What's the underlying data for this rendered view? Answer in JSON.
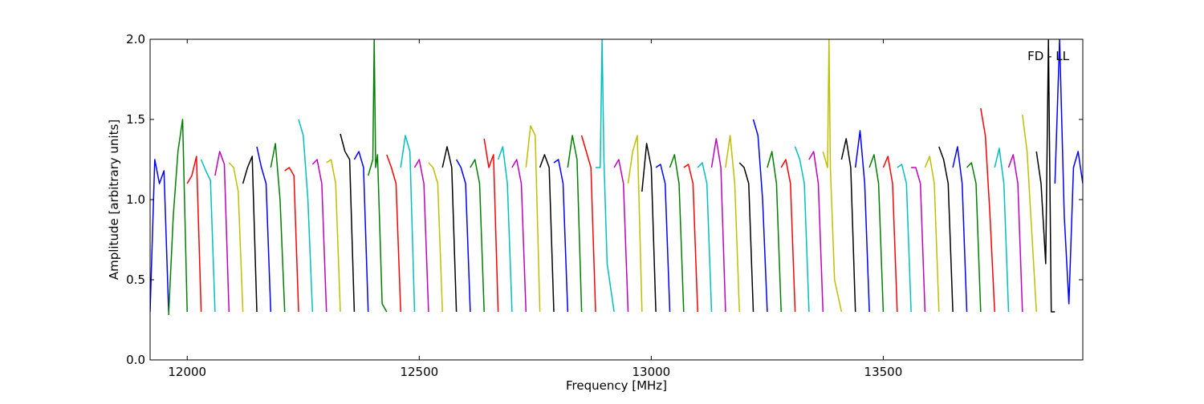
{
  "chart_data": {
    "type": "line",
    "title": "",
    "annotation": "FD - LL",
    "xlabel": "Frequency [MHz]",
    "ylabel": "Amplitude [arbitrary units]",
    "xlim": [
      11920,
      13930
    ],
    "ylim": [
      0.0,
      2.0
    ],
    "xticks": [
      12000,
      12500,
      13000,
      13500
    ],
    "xtick_labels": [
      "12000",
      "12500",
      "13000",
      "13500"
    ],
    "yticks": [
      0.0,
      0.5,
      1.0,
      1.5,
      2.0
    ],
    "ytick_labels": [
      "0.0",
      "0.5",
      "1.0",
      "1.5",
      "2.0"
    ],
    "grid": false,
    "color_cycle": [
      "#0000ff",
      "#008000",
      "#ff0000",
      "#00bfbf",
      "#bf00bf",
      "#bfbf00",
      "#000000"
    ],
    "series": [
      {
        "color": "#0000ff",
        "x": [
          11920,
          11930,
          11940,
          11950,
          11960
        ],
        "y": [
          0.3,
          1.25,
          1.1,
          1.18,
          0.3
        ]
      },
      {
        "color": "#008000",
        "x": [
          11960,
          11970,
          11980,
          11990,
          12000
        ],
        "y": [
          0.28,
          0.9,
          1.3,
          1.5,
          0.3
        ]
      },
      {
        "color": "#ff0000",
        "x": [
          12000,
          12010,
          12020,
          12030
        ],
        "y": [
          1.1,
          1.15,
          1.27,
          0.3
        ]
      },
      {
        "color": "#00bfbf",
        "x": [
          12030,
          12040,
          12050,
          12060
        ],
        "y": [
          1.25,
          1.18,
          1.12,
          0.3
        ]
      },
      {
        "color": "#bf00bf",
        "x": [
          12060,
          12070,
          12080,
          12090
        ],
        "y": [
          1.15,
          1.3,
          1.22,
          0.3
        ]
      },
      {
        "color": "#bfbf00",
        "x": [
          12090,
          12100,
          12110,
          12120
        ],
        "y": [
          1.23,
          1.2,
          1.05,
          0.3
        ]
      },
      {
        "color": "#000000",
        "x": [
          12120,
          12130,
          12140,
          12150
        ],
        "y": [
          1.1,
          1.2,
          1.27,
          0.3
        ]
      },
      {
        "color": "#0000ff",
        "x": [
          12150,
          12160,
          12170,
          12180
        ],
        "y": [
          1.33,
          1.2,
          1.1,
          0.3
        ]
      },
      {
        "color": "#008000",
        "x": [
          12180,
          12190,
          12200,
          12210
        ],
        "y": [
          1.2,
          1.35,
          1.0,
          0.3
        ]
      },
      {
        "color": "#ff0000",
        "x": [
          12210,
          12220,
          12230,
          12240
        ],
        "y": [
          1.18,
          1.2,
          1.15,
          0.3
        ]
      },
      {
        "color": "#00bfbf",
        "x": [
          12240,
          12250,
          12260,
          12270
        ],
        "y": [
          1.5,
          1.4,
          1.0,
          0.3
        ]
      },
      {
        "color": "#bf00bf",
        "x": [
          12270,
          12280,
          12290,
          12300
        ],
        "y": [
          1.22,
          1.25,
          1.1,
          0.3
        ]
      },
      {
        "color": "#bfbf00",
        "x": [
          12300,
          12310,
          12320,
          12330
        ],
        "y": [
          1.23,
          1.25,
          1.1,
          0.3
        ]
      },
      {
        "color": "#000000",
        "x": [
          12330,
          12340,
          12350,
          12360
        ],
        "y": [
          1.41,
          1.3,
          1.25,
          0.3
        ]
      },
      {
        "color": "#0000ff",
        "x": [
          12360,
          12370,
          12380,
          12390
        ],
        "y": [
          1.25,
          1.3,
          1.2,
          0.3
        ]
      },
      {
        "color": "#008000",
        "x": [
          12390,
          12400,
          12403,
          12406,
          12410,
          12420,
          12430
        ],
        "y": [
          1.15,
          1.25,
          2.0,
          1.2,
          1.28,
          0.35,
          0.3
        ]
      },
      {
        "color": "#ff0000",
        "x": [
          12430,
          12440,
          12450,
          12460
        ],
        "y": [
          1.28,
          1.2,
          1.1,
          0.3
        ]
      },
      {
        "color": "#00bfbf",
        "x": [
          12460,
          12470,
          12480,
          12490
        ],
        "y": [
          1.2,
          1.4,
          1.3,
          0.3
        ]
      },
      {
        "color": "#bf00bf",
        "x": [
          12490,
          12500,
          12510,
          12520
        ],
        "y": [
          1.2,
          1.25,
          1.1,
          0.3
        ]
      },
      {
        "color": "#bfbf00",
        "x": [
          12520,
          12530,
          12540,
          12550
        ],
        "y": [
          1.23,
          1.2,
          1.1,
          0.3
        ]
      },
      {
        "color": "#000000",
        "x": [
          12550,
          12560,
          12570,
          12580
        ],
        "y": [
          1.2,
          1.33,
          1.2,
          0.3
        ]
      },
      {
        "color": "#0000ff",
        "x": [
          12580,
          12590,
          12600,
          12610
        ],
        "y": [
          1.25,
          1.2,
          1.1,
          0.3
        ]
      },
      {
        "color": "#008000",
        "x": [
          12610,
          12620,
          12630,
          12640
        ],
        "y": [
          1.2,
          1.25,
          1.1,
          0.3
        ]
      },
      {
        "color": "#ff0000",
        "x": [
          12640,
          12650,
          12660,
          12670
        ],
        "y": [
          1.38,
          1.2,
          1.28,
          0.3
        ]
      },
      {
        "color": "#00bfbf",
        "x": [
          12670,
          12680,
          12690,
          12700
        ],
        "y": [
          1.25,
          1.33,
          1.1,
          0.3
        ]
      },
      {
        "color": "#bf00bf",
        "x": [
          12700,
          12710,
          12720,
          12730
        ],
        "y": [
          1.2,
          1.25,
          1.1,
          0.3
        ]
      },
      {
        "color": "#bfbf00",
        "x": [
          12730,
          12740,
          12750,
          12760
        ],
        "y": [
          1.2,
          1.46,
          1.4,
          0.3
        ]
      },
      {
        "color": "#000000",
        "x": [
          12760,
          12770,
          12780,
          12790
        ],
        "y": [
          1.2,
          1.28,
          1.2,
          0.3
        ]
      },
      {
        "color": "#0000ff",
        "x": [
          12790,
          12800,
          12810,
          12820
        ],
        "y": [
          1.23,
          1.25,
          1.1,
          0.3
        ]
      },
      {
        "color": "#008000",
        "x": [
          12820,
          12830,
          12840,
          12850
        ],
        "y": [
          1.2,
          1.4,
          1.25,
          0.3
        ]
      },
      {
        "color": "#ff0000",
        "x": [
          12850,
          12860,
          12870,
          12880
        ],
        "y": [
          1.4,
          1.3,
          1.2,
          0.3
        ]
      },
      {
        "color": "#00bfbf",
        "x": [
          12880,
          12890,
          12894,
          12898,
          12905,
          12920
        ],
        "y": [
          1.2,
          1.2,
          2.0,
          1.25,
          0.6,
          0.3
        ]
      },
      {
        "color": "#bf00bf",
        "x": [
          12920,
          12930,
          12940,
          12950
        ],
        "y": [
          1.2,
          1.25,
          1.1,
          0.3
        ]
      },
      {
        "color": "#bfbf00",
        "x": [
          12950,
          12960,
          12970,
          12980
        ],
        "y": [
          1.1,
          1.3,
          1.4,
          0.3
        ]
      },
      {
        "color": "#000000",
        "x": [
          12980,
          12990,
          13000,
          13010
        ],
        "y": [
          1.05,
          1.35,
          1.2,
          0.3
        ]
      },
      {
        "color": "#0000ff",
        "x": [
          13010,
          13020,
          13030,
          13040
        ],
        "y": [
          1.2,
          1.22,
          1.1,
          0.3
        ]
      },
      {
        "color": "#008000",
        "x": [
          13040,
          13050,
          13060,
          13070
        ],
        "y": [
          1.2,
          1.28,
          1.1,
          0.3
        ]
      },
      {
        "color": "#ff0000",
        "x": [
          13070,
          13080,
          13090,
          13100
        ],
        "y": [
          1.2,
          1.22,
          1.1,
          0.3
        ]
      },
      {
        "color": "#00bfbf",
        "x": [
          13100,
          13110,
          13120,
          13130
        ],
        "y": [
          1.2,
          1.23,
          1.1,
          0.3
        ]
      },
      {
        "color": "#bf00bf",
        "x": [
          13130,
          13140,
          13150,
          13160
        ],
        "y": [
          1.2,
          1.38,
          1.2,
          0.3
        ]
      },
      {
        "color": "#bfbf00",
        "x": [
          13160,
          13170,
          13180,
          13190
        ],
        "y": [
          1.2,
          1.4,
          1.1,
          0.3
        ]
      },
      {
        "color": "#000000",
        "x": [
          13190,
          13200,
          13210,
          13220
        ],
        "y": [
          1.23,
          1.2,
          1.1,
          0.3
        ]
      },
      {
        "color": "#0000ff",
        "x": [
          13220,
          13230,
          13240,
          13250
        ],
        "y": [
          1.5,
          1.4,
          1.0,
          0.3
        ]
      },
      {
        "color": "#008000",
        "x": [
          13250,
          13260,
          13270,
          13280
        ],
        "y": [
          1.2,
          1.3,
          1.1,
          0.3
        ]
      },
      {
        "color": "#ff0000",
        "x": [
          13280,
          13290,
          13300,
          13310
        ],
        "y": [
          1.2,
          1.25,
          1.1,
          0.3
        ]
      },
      {
        "color": "#00bfbf",
        "x": [
          13310,
          13320,
          13330,
          13340
        ],
        "y": [
          1.33,
          1.25,
          1.1,
          0.3
        ]
      },
      {
        "color": "#bf00bf",
        "x": [
          13340,
          13350,
          13360,
          13370
        ],
        "y": [
          1.25,
          1.3,
          1.1,
          0.3
        ]
      },
      {
        "color": "#bfbf00",
        "x": [
          13370,
          13380,
          13383,
          13386,
          13395,
          13410
        ],
        "y": [
          1.3,
          1.2,
          2.0,
          1.2,
          0.5,
          0.3
        ]
      },
      {
        "color": "#000000",
        "x": [
          13410,
          13420,
          13430,
          13440
        ],
        "y": [
          1.25,
          1.38,
          1.2,
          0.3
        ]
      },
      {
        "color": "#0000ff",
        "x": [
          13440,
          13450,
          13460,
          13470
        ],
        "y": [
          1.2,
          1.43,
          1.1,
          0.3
        ]
      },
      {
        "color": "#008000",
        "x": [
          13470,
          13480,
          13490,
          13500
        ],
        "y": [
          1.2,
          1.28,
          1.1,
          0.3
        ]
      },
      {
        "color": "#ff0000",
        "x": [
          13500,
          13510,
          13520,
          13530
        ],
        "y": [
          1.2,
          1.27,
          1.1,
          0.3
        ]
      },
      {
        "color": "#00bfbf",
        "x": [
          13530,
          13540,
          13550,
          13560
        ],
        "y": [
          1.2,
          1.22,
          1.1,
          0.3
        ]
      },
      {
        "color": "#bf00bf",
        "x": [
          13560,
          13570,
          13580,
          13590
        ],
        "y": [
          1.2,
          1.2,
          1.1,
          0.3
        ]
      },
      {
        "color": "#bfbf00",
        "x": [
          13590,
          13600,
          13610,
          13620
        ],
        "y": [
          1.2,
          1.27,
          1.1,
          0.3
        ]
      },
      {
        "color": "#000000",
        "x": [
          13620,
          13630,
          13640,
          13650
        ],
        "y": [
          1.33,
          1.25,
          1.1,
          0.3
        ]
      },
      {
        "color": "#0000ff",
        "x": [
          13650,
          13660,
          13670,
          13680
        ],
        "y": [
          1.2,
          1.33,
          1.1,
          0.3
        ]
      },
      {
        "color": "#008000",
        "x": [
          13680,
          13690,
          13700,
          13710
        ],
        "y": [
          1.2,
          1.23,
          1.1,
          0.3
        ]
      },
      {
        "color": "#ff0000",
        "x": [
          13710,
          13720,
          13730,
          13740
        ],
        "y": [
          1.57,
          1.4,
          0.9,
          0.3
        ]
      },
      {
        "color": "#00bfbf",
        "x": [
          13740,
          13750,
          13760,
          13770
        ],
        "y": [
          1.2,
          1.32,
          1.1,
          0.3
        ]
      },
      {
        "color": "#bf00bf",
        "x": [
          13770,
          13780,
          13790,
          13800
        ],
        "y": [
          1.2,
          1.28,
          1.1,
          0.3
        ]
      },
      {
        "color": "#bfbf00",
        "x": [
          13800,
          13810,
          13820,
          13830
        ],
        "y": [
          1.53,
          1.3,
          0.8,
          0.3
        ]
      },
      {
        "color": "#000000",
        "x": [
          13830,
          13840,
          13850,
          13856,
          13862,
          13870
        ],
        "y": [
          1.3,
          1.1,
          0.6,
          2.0,
          0.3,
          0.3
        ]
      },
      {
        "color": "#0000ff",
        "x": [
          13870,
          13880,
          13890,
          13900,
          13910,
          13920,
          13930
        ],
        "y": [
          1.1,
          2.0,
          0.9,
          0.35,
          1.2,
          1.3,
          1.1
        ]
      }
    ]
  }
}
